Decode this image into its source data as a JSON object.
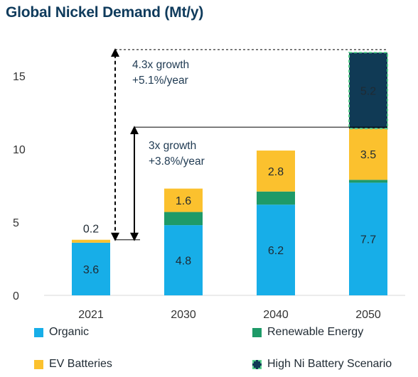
{
  "chart_data": {
    "type": "bar",
    "stacked": true,
    "title": "Global Nickel Demand (Mt/y)",
    "categories": [
      "2021",
      "2030",
      "2040",
      "2050"
    ],
    "ylim": [
      0,
      17
    ],
    "yticks": [
      0,
      5,
      10,
      15
    ],
    "grid": false,
    "series": [
      {
        "name": "Organic",
        "color": "#17aee8",
        "values": [
          3.6,
          4.8,
          6.2,
          7.7
        ],
        "labels": [
          "3.6",
          "4.8",
          "6.2",
          "7.7"
        ]
      },
      {
        "name": "Renewable Energy",
        "color": "#1e9a68",
        "values": [
          0.0,
          0.9,
          0.9,
          0.2
        ],
        "labels": [
          "",
          "",
          "",
          ""
        ]
      },
      {
        "name": "EV Batteries",
        "color": "#fbc12e",
        "values": [
          0.2,
          1.6,
          2.8,
          3.5
        ],
        "labels": [
          "0.2",
          "1.6",
          "2.8",
          "3.5"
        ]
      },
      {
        "name": "High Ni Battery Scenario",
        "color": "#103a55",
        "border_color": "#59d08c",
        "values": [
          0,
          0,
          0,
          5.2
        ],
        "labels": [
          "",
          "",
          "",
          "5.2"
        ]
      }
    ],
    "legend_position": "bottom",
    "annotations": [
      {
        "line1": "4.3x growth",
        "line2": "+5.1%/year",
        "from": 3.8,
        "to": 16.8
      },
      {
        "line1": "3x growth",
        "line2": "+3.8%/year",
        "from": 3.8,
        "to": 11.5
      }
    ]
  }
}
